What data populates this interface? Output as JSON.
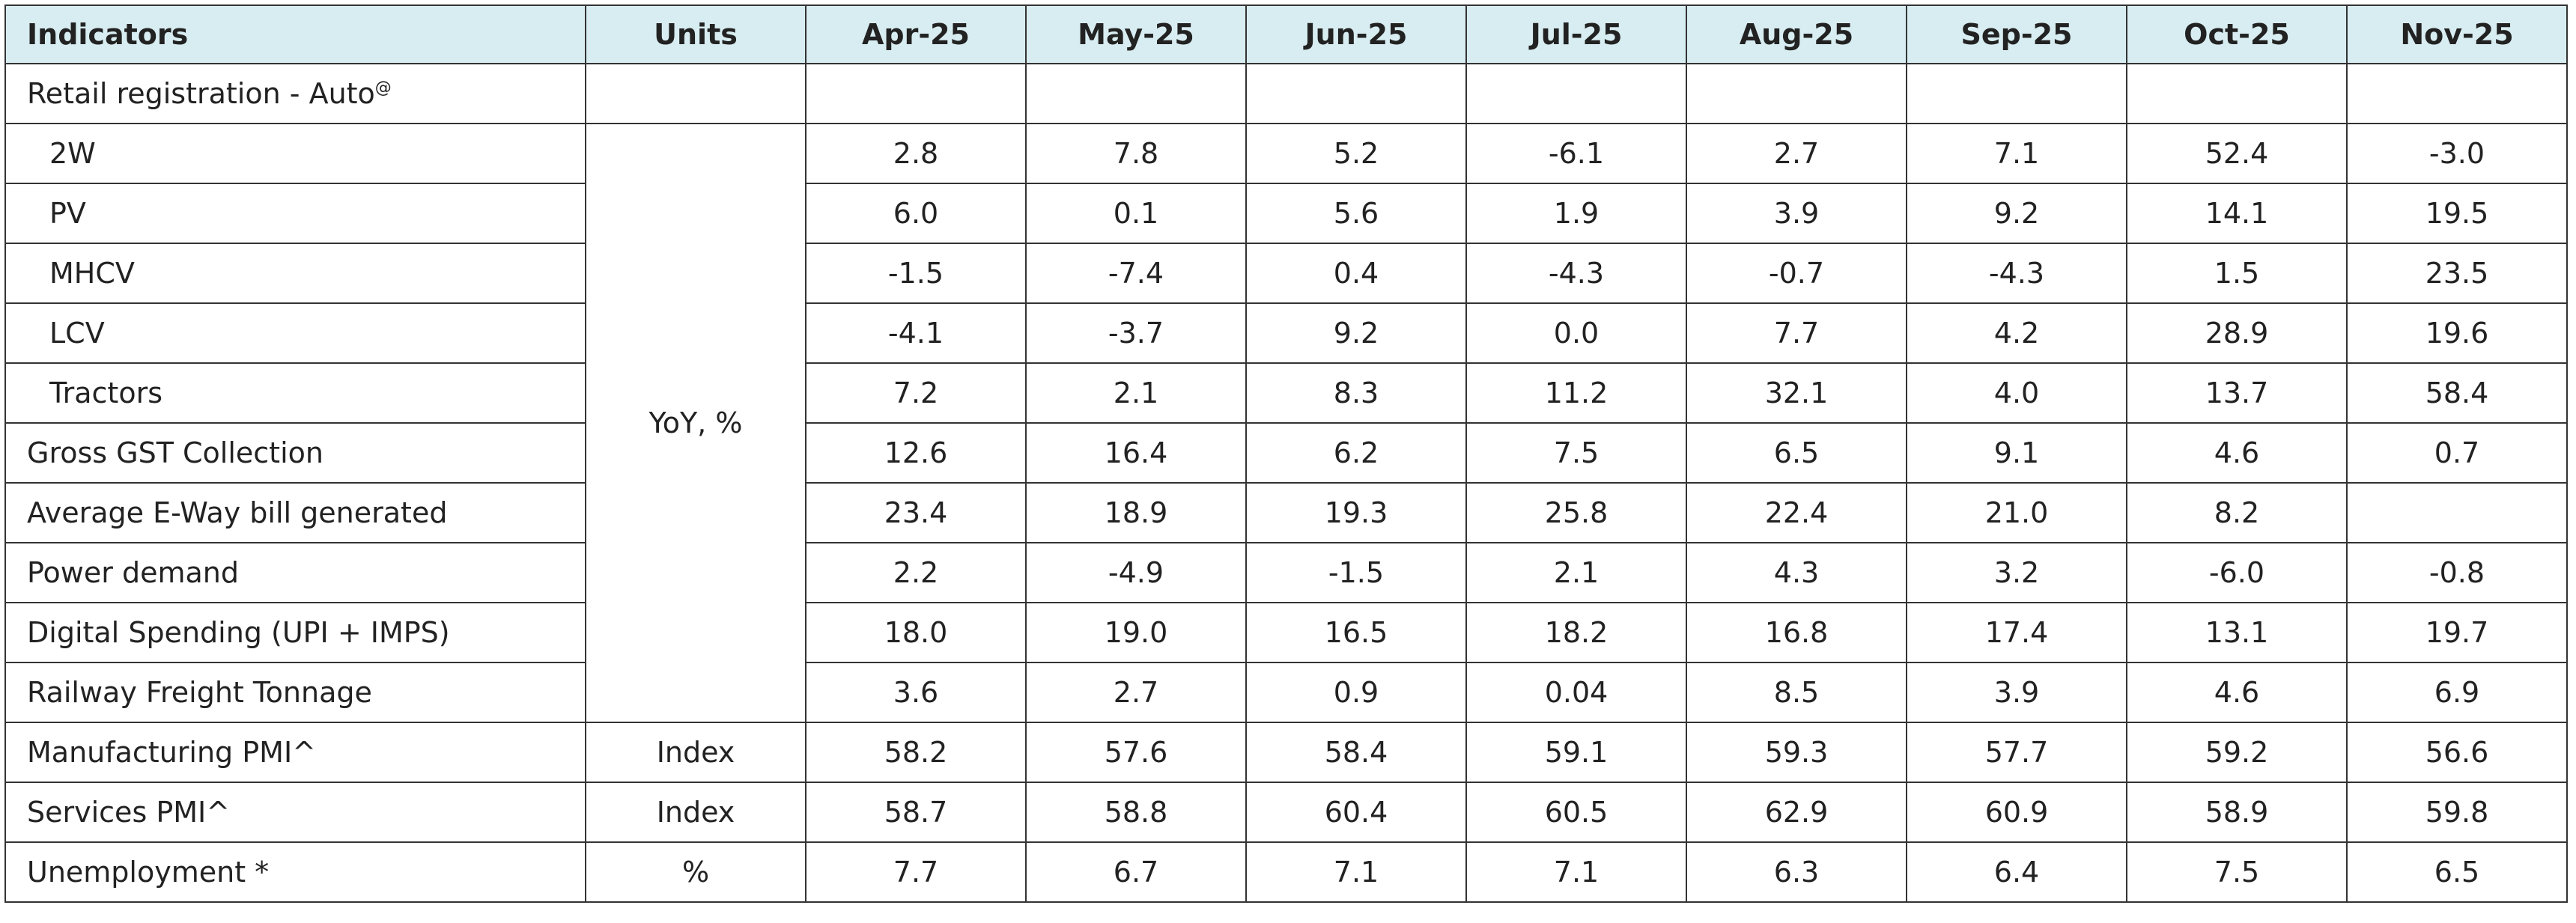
{
  "table": {
    "headers": [
      "Indicators",
      "Units",
      "Apr-25",
      "May-25",
      "Jun-25",
      "Jul-25",
      "Aug-25",
      "Sep-25",
      "Oct-25",
      "Nov-25"
    ],
    "rows": [
      {
        "label": "Retail registration - Auto",
        "sup": "@",
        "unit": null,
        "values": [
          null,
          null,
          null,
          null,
          null,
          null,
          null,
          null
        ]
      },
      {
        "label": "2W",
        "indent": true,
        "unit": "YoY, %",
        "values": [
          "2.8",
          "7.8",
          "5.2",
          "-6.1",
          "2.7",
          "7.1",
          "52.4",
          "-3.0"
        ]
      },
      {
        "label": "PV",
        "indent": true,
        "values": [
          "6.0",
          "0.1",
          "5.6",
          "1.9",
          "3.9",
          "9.2",
          "14.1",
          "19.5"
        ]
      },
      {
        "label": "MHCV",
        "indent": true,
        "values": [
          "-1.5",
          "-7.4",
          "0.4",
          "-4.3",
          "-0.7",
          "-4.3",
          "1.5",
          "23.5"
        ]
      },
      {
        "label": "LCV",
        "indent": true,
        "values": [
          "-4.1",
          "-3.7",
          "9.2",
          "0.0",
          "7.7",
          "4.2",
          "28.9",
          "19.6"
        ]
      },
      {
        "label": "Tractors",
        "indent": true,
        "values": [
          "7.2",
          "2.1",
          "8.3",
          "11.2",
          "32.1",
          "4.0",
          "13.7",
          "58.4"
        ]
      },
      {
        "label": "Gross GST Collection",
        "values": [
          "12.6",
          "16.4",
          "6.2",
          "7.5",
          "6.5",
          "9.1",
          "4.6",
          "0.7"
        ]
      },
      {
        "label": "Average E-Way bill generated",
        "values": [
          "23.4",
          "18.9",
          "19.3",
          "25.8",
          "22.4",
          "21.0",
          "8.2",
          null
        ]
      },
      {
        "label": "Power demand",
        "values": [
          "2.2",
          "-4.9",
          "-1.5",
          "2.1",
          "4.3",
          "3.2",
          "-6.0",
          "-0.8"
        ]
      },
      {
        "label": "Digital Spending (UPI + IMPS)",
        "values": [
          "18.0",
          "19.0",
          "16.5",
          "18.2",
          "16.8",
          "17.4",
          "13.1",
          "19.7"
        ]
      },
      {
        "label": "Railway Freight Tonnage",
        "values": [
          "3.6",
          "2.7",
          "0.9",
          "0.04",
          "8.5",
          "3.9",
          "4.6",
          "6.9"
        ]
      },
      {
        "label": "Manufacturing PMI^",
        "unit": "Index",
        "values": [
          "58.2",
          "57.6",
          "58.4",
          "59.1",
          "59.3",
          "57.7",
          "59.2",
          "56.6"
        ]
      },
      {
        "label": "Services PMI^",
        "unit": "Index",
        "values": [
          "58.7",
          "58.8",
          "60.4",
          "60.5",
          "62.9",
          "60.9",
          "58.9",
          "59.8"
        ]
      },
      {
        "label": "Unemployment *",
        "unit": "%",
        "values": [
          "7.7",
          "6.7",
          "7.1",
          "7.1",
          "6.3",
          "6.4",
          "7.5",
          "6.5"
        ]
      }
    ]
  }
}
